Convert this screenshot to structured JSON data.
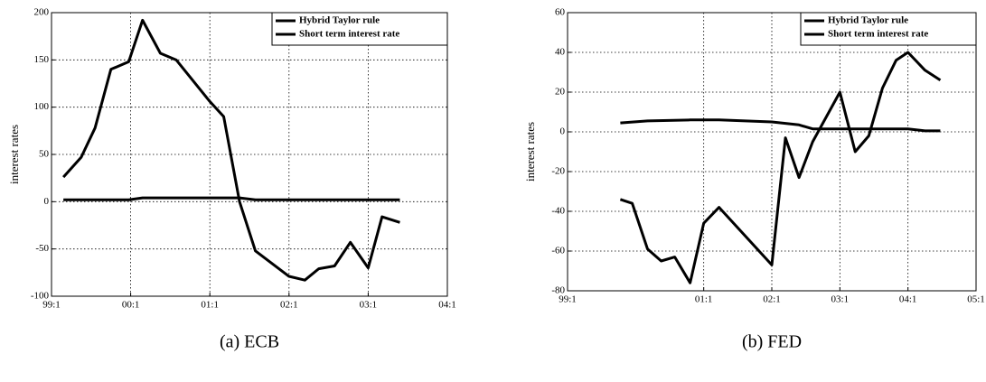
{
  "chart_data": [
    {
      "type": "line",
      "caption": "(a) ECB",
      "y_label": "interest rates",
      "xlim": [
        0,
        20
      ],
      "xticks": [
        {
          "value": 0,
          "label": "99:1"
        },
        {
          "value": 4,
          "label": "00:1"
        },
        {
          "value": 8,
          "label": "01:1"
        },
        {
          "value": 12,
          "label": "02:1"
        },
        {
          "value": 16,
          "label": "03:1"
        },
        {
          "value": 20,
          "label": "04:1"
        }
      ],
      "ylim": [
        -100,
        200
      ],
      "yticks": [
        -100,
        -50,
        0,
        50,
        100,
        150,
        200
      ],
      "grid": true,
      "legend": "top-right",
      "series": [
        {
          "name": "Hybrid Taylor rule",
          "color": "#000000",
          "x": [
            0.6,
            1.5,
            2.2,
            3.0,
            3.9,
            4.6,
            5.5,
            6.3,
            8.0,
            8.7,
            9.5,
            10.3,
            12.0,
            12.8,
            13.5,
            14.3,
            15.1,
            16.0,
            16.7,
            17.6
          ],
          "values": [
            26,
            47,
            78,
            140,
            148,
            192,
            157,
            150,
            106,
            90,
            0,
            -52,
            -79,
            -83,
            -71,
            -68,
            -43,
            -70,
            -16,
            -22
          ]
        },
        {
          "name": "Short term interest rate",
          "color": "#000000",
          "x": [
            0.6,
            3.9,
            4.6,
            9.5,
            10.3,
            17.6
          ],
          "values": [
            2,
            2,
            4,
            4,
            2,
            2
          ]
        }
      ]
    },
    {
      "type": "line",
      "caption": "(b) FED",
      "y_label": "interest rates",
      "xlim": [
        0,
        24
      ],
      "xticks": [
        {
          "value": 0,
          "label": "99:1"
        },
        {
          "value": 8,
          "label": "01:1"
        },
        {
          "value": 12,
          "label": "02:1"
        },
        {
          "value": 16,
          "label": "03:1"
        },
        {
          "value": 20,
          "label": "04:1"
        },
        {
          "value": 24,
          "label": "05:1"
        }
      ],
      "ylim": [
        -80,
        60
      ],
      "yticks": [
        -80,
        -60,
        -40,
        -20,
        0,
        20,
        40,
        60
      ],
      "grid": true,
      "legend": "top-right",
      "series": [
        {
          "name": "Hybrid Taylor rule",
          "color": "#000000",
          "x": [
            3.1,
            3.8,
            4.7,
            5.5,
            6.3,
            7.2,
            8.0,
            8.9,
            12.0,
            12.8,
            13.6,
            14.4,
            16.0,
            16.9,
            17.7,
            18.5,
            19.3,
            20.0,
            21.0,
            21.9
          ],
          "values": [
            -34,
            -36,
            -59,
            -65,
            -63,
            -76,
            -46,
            -38,
            -67,
            -3,
            -23,
            -5,
            20,
            -10,
            -2,
            22,
            36,
            40,
            31,
            26
          ]
        },
        {
          "name": "Short term interest rate",
          "color": "#000000",
          "x": [
            3.1,
            4.7,
            7.2,
            8.9,
            12.0,
            13.6,
            14.4,
            20.0,
            21.0,
            21.9
          ],
          "values": [
            4.5,
            5.5,
            6,
            6,
            5,
            3.5,
            1.5,
            1.5,
            0.5,
            0.5
          ]
        }
      ]
    }
  ]
}
